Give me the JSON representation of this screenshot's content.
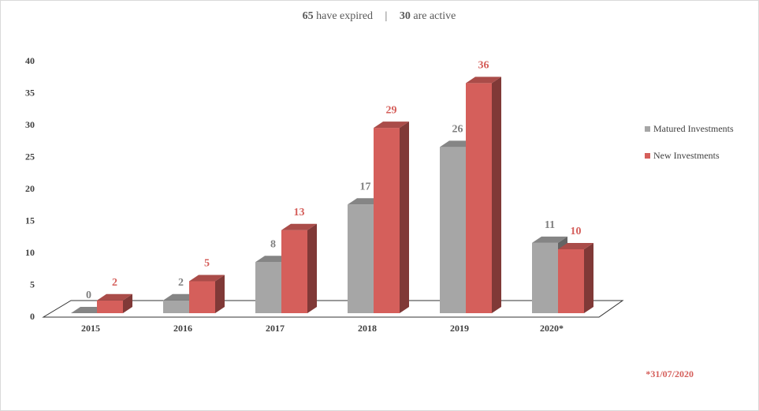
{
  "chart_data": {
    "type": "bar3d",
    "title": {
      "expired_count": 65,
      "expired_text": "have expired",
      "separator": "|",
      "active_count": 30,
      "active_text": "are active"
    },
    "categories": [
      "2015",
      "2016",
      "2017",
      "2018",
      "2019",
      "2020*"
    ],
    "series": [
      {
        "name": "Matured Investments",
        "color": "#a6a6a6",
        "values": [
          0,
          2,
          8,
          17,
          26,
          11
        ]
      },
      {
        "name": "New Investments",
        "color": "#d55f5b",
        "values": [
          2,
          5,
          13,
          29,
          36,
          10
        ]
      }
    ],
    "ylim": [
      0,
      40
    ],
    "yticks": [
      0,
      5,
      10,
      15,
      20,
      25,
      30,
      35,
      40
    ],
    "legend": "right",
    "footnote": "*31/07/2020"
  }
}
